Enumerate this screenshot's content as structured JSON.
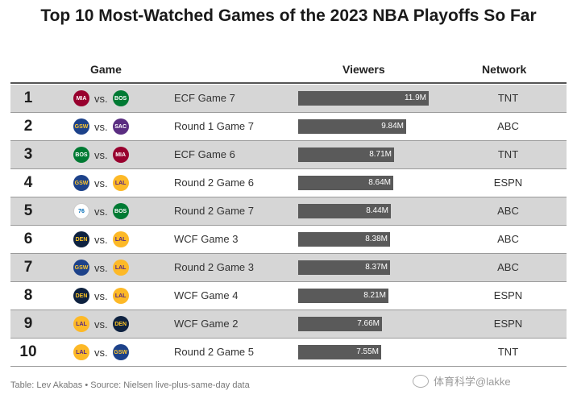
{
  "title": "Top 10 Most-Watched Games of the 2023 NBA Playoffs So Far",
  "headers": {
    "game": "Game",
    "viewers": "Viewers",
    "network": "Network"
  },
  "vs_label": "vs.",
  "teams": {
    "heat": {
      "abbr": "MIA",
      "color": "#98002E",
      "text": "#ffffff"
    },
    "celtics": {
      "abbr": "BOS",
      "color": "#007A33",
      "text": "#ffffff"
    },
    "warriors": {
      "abbr": "GSW",
      "color": "#1D428A",
      "text": "#FFC72C"
    },
    "kings": {
      "abbr": "SAC",
      "color": "#5A2D81",
      "text": "#ffffff"
    },
    "lakers": {
      "abbr": "LAL",
      "color": "#FDB927",
      "text": "#552583"
    },
    "76ers": {
      "abbr": "76",
      "color": "#ffffff",
      "text": "#006BB6"
    },
    "nuggets": {
      "abbr": "DEN",
      "color": "#0E2240",
      "text": "#FEC524"
    }
  },
  "chart_data": {
    "type": "table",
    "title": "Top 10 Most-Watched Games of the 2023 NBA Playoffs So Far",
    "unit": "viewers (millions)",
    "rows": [
      {
        "rank": "1",
        "team1": "heat",
        "team2": "celtics",
        "round": "ECF Game 7",
        "viewers": 11.9,
        "viewers_label": "11.9M",
        "network": "TNT"
      },
      {
        "rank": "2",
        "team1": "warriors",
        "team2": "kings",
        "round": "Round 1 Game 7",
        "viewers": 9.84,
        "viewers_label": "9.84M",
        "network": "ABC"
      },
      {
        "rank": "3",
        "team1": "celtics",
        "team2": "heat",
        "round": "ECF Game 6",
        "viewers": 8.71,
        "viewers_label": "8.71M",
        "network": "TNT"
      },
      {
        "rank": "4",
        "team1": "warriors",
        "team2": "lakers",
        "round": "Round 2 Game 6",
        "viewers": 8.64,
        "viewers_label": "8.64M",
        "network": "ESPN"
      },
      {
        "rank": "5",
        "team1": "76ers",
        "team2": "celtics",
        "round": "Round 2 Game 7",
        "viewers": 8.44,
        "viewers_label": "8.44M",
        "network": "ABC"
      },
      {
        "rank": "6",
        "team1": "nuggets",
        "team2": "lakers",
        "round": "WCF Game 3",
        "viewers": 8.38,
        "viewers_label": "8.38M",
        "network": "ABC"
      },
      {
        "rank": "7",
        "team1": "warriors",
        "team2": "lakers",
        "round": "Round 2 Game 3",
        "viewers": 8.37,
        "viewers_label": "8.37M",
        "network": "ABC"
      },
      {
        "rank": "8",
        "team1": "nuggets",
        "team2": "lakers",
        "round": "WCF Game 4",
        "viewers": 8.21,
        "viewers_label": "8.21M",
        "network": "ESPN"
      },
      {
        "rank": "9",
        "team1": "lakers",
        "team2": "nuggets",
        "round": "WCF Game 2",
        "viewers": 7.66,
        "viewers_label": "7.66M",
        "network": "ESPN"
      },
      {
        "rank": "10",
        "team1": "lakers",
        "team2": "warriors",
        "round": "Round 2 Game 5",
        "viewers": 7.55,
        "viewers_label": "7.55M",
        "network": "TNT"
      }
    ]
  },
  "colors": {
    "bar": "#5a5a5a",
    "shaded_row": "#d6d6d6"
  },
  "footer": "Table: Lev Akabas • Source: Nielsen live-plus-same-day data",
  "watermark": "体育科学@lakke"
}
